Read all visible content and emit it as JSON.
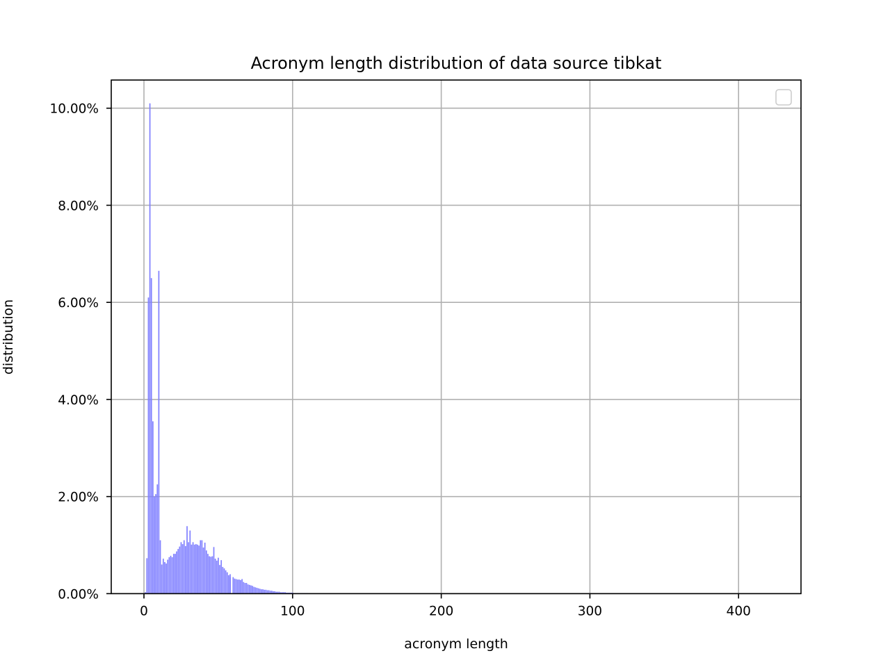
{
  "chart_data": {
    "type": "bar",
    "title": "Acronym length distribution of data source tibkat",
    "xlabel": "acronym length",
    "ylabel": "distribution",
    "xlim": [
      -22,
      442
    ],
    "ylim": [
      0,
      0.1058
    ],
    "x_ticks": [
      0,
      100,
      200,
      300,
      400
    ],
    "x_tick_labels": [
      "0",
      "100",
      "200",
      "300",
      "400"
    ],
    "y_ticks": [
      0,
      0.02,
      0.04,
      0.06,
      0.08,
      0.1
    ],
    "y_tick_labels": [
      "0.00%",
      "2.00%",
      "4.00%",
      "6.00%",
      "8.00%",
      "10.00%"
    ],
    "grid": true,
    "legend": {
      "placement": "top-right",
      "entries": []
    },
    "bar_color": "#8080ff",
    "x": [
      1,
      2,
      3,
      4,
      5,
      6,
      7,
      8,
      9,
      10,
      11,
      12,
      13,
      14,
      15,
      16,
      17,
      18,
      19,
      20,
      21,
      22,
      23,
      24,
      25,
      26,
      27,
      28,
      29,
      30,
      31,
      32,
      33,
      34,
      35,
      36,
      37,
      38,
      39,
      40,
      41,
      42,
      43,
      44,
      45,
      46,
      47,
      48,
      49,
      50,
      51,
      52,
      53,
      54,
      55,
      56,
      57,
      58,
      58,
      60,
      61,
      62,
      63,
      64,
      65,
      66,
      67,
      68,
      69,
      70,
      71,
      72,
      73,
      74,
      75,
      76,
      77,
      78,
      79,
      80,
      81,
      82,
      83,
      84,
      85,
      86,
      87,
      88,
      89,
      90,
      91,
      92,
      93,
      94,
      95,
      96,
      97,
      98,
      99,
      100,
      101,
      102,
      103,
      104,
      105,
      106,
      107,
      108,
      109,
      110,
      111,
      112,
      113,
      114,
      115,
      116,
      117,
      118,
      119,
      120,
      121,
      122,
      123,
      124,
      125,
      126,
      127,
      128,
      129,
      130
    ],
    "values": [
      0.0003,
      0.0073,
      0.061,
      0.101,
      0.065,
      0.0355,
      0.02,
      0.0205,
      0.0225,
      0.0665,
      0.011,
      0.006,
      0.0072,
      0.0065,
      0.0062,
      0.007,
      0.0075,
      0.0078,
      0.0075,
      0.0082,
      0.0082,
      0.0087,
      0.0092,
      0.0097,
      0.0106,
      0.0102,
      0.011,
      0.0098,
      0.0139,
      0.0106,
      0.013,
      0.0101,
      0.0106,
      0.0101,
      0.0102,
      0.0101,
      0.0099,
      0.011,
      0.011,
      0.0095,
      0.0105,
      0.0089,
      0.0082,
      0.0077,
      0.0076,
      0.0077,
      0.0096,
      0.0072,
      0.0068,
      0.0074,
      0.0059,
      0.0069,
      0.0055,
      0.0052,
      0.0048,
      0.0044,
      0.0038,
      0.0034,
      0.004,
      0.0034,
      0.0031,
      0.003,
      0.0029,
      0.0029,
      0.0028,
      0.003,
      0.0024,
      0.0022,
      0.0022,
      0.0019,
      0.0018,
      0.0017,
      0.0016,
      0.0014,
      0.0013,
      0.0012,
      0.0011,
      0.001,
      0.0009,
      0.0009,
      0.0008,
      0.0008,
      0.0007,
      0.0007,
      0.0006,
      0.0006,
      0.0005,
      0.0005,
      0.0004,
      0.0004,
      0.0004,
      0.0003,
      0.0003,
      0.0003,
      0.0003,
      0.0002,
      0.0002,
      0.0002,
      0.0002,
      0.0002,
      0.0001,
      0.0001,
      0.0001,
      0.0001,
      0.0001,
      0.0001,
      0.0001,
      0.0001,
      0.0001,
      0.0001,
      5e-05,
      5e-05,
      5e-05,
      5e-05,
      5e-05,
      5e-05,
      5e-05,
      5e-05,
      5e-05,
      5e-05,
      4e-05,
      4e-05,
      4e-05,
      4e-05,
      3e-05,
      3e-05,
      3e-05,
      3e-05,
      2e-05,
      2e-05
    ]
  }
}
